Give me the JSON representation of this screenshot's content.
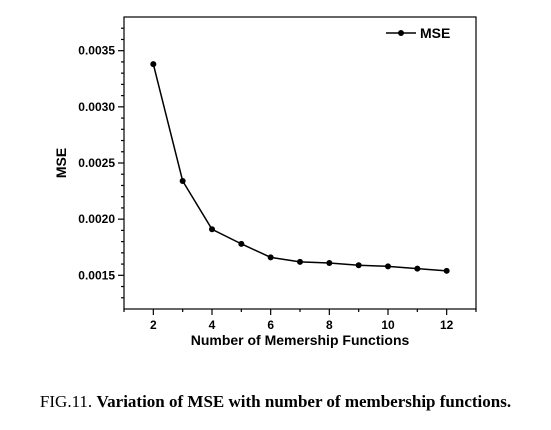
{
  "chart_data": {
    "type": "line",
    "title": "",
    "xlabel": "Number of Memership Functions",
    "ylabel": "MSE",
    "xlim": [
      1,
      13
    ],
    "ylim": [
      0.0012,
      0.0038
    ],
    "xticks": [
      2,
      4,
      6,
      8,
      10,
      12
    ],
    "xtick_labels": [
      "2",
      "4",
      "6",
      "8",
      "10",
      "12"
    ],
    "yticks": [
      0.0015,
      0.002,
      0.0025,
      0.003,
      0.0035
    ],
    "ytick_labels": [
      "0.0015",
      "0.0020",
      "0.0025",
      "0.0030",
      "0.0035"
    ],
    "legend": {
      "position": "top-right"
    },
    "grid": false,
    "series": [
      {
        "name": "MSE",
        "color": "#000000",
        "x": [
          2,
          3,
          4,
          5,
          6,
          7,
          8,
          9,
          10,
          11,
          12
        ],
        "y": [
          0.00338,
          0.00234,
          0.00191,
          0.00178,
          0.00166,
          0.00162,
          0.00161,
          0.00159,
          0.00158,
          0.00156,
          0.00154
        ]
      }
    ]
  },
  "caption": {
    "prefix": "FIG.11. ",
    "title": "Variation of MSE with number of membership functions."
  }
}
